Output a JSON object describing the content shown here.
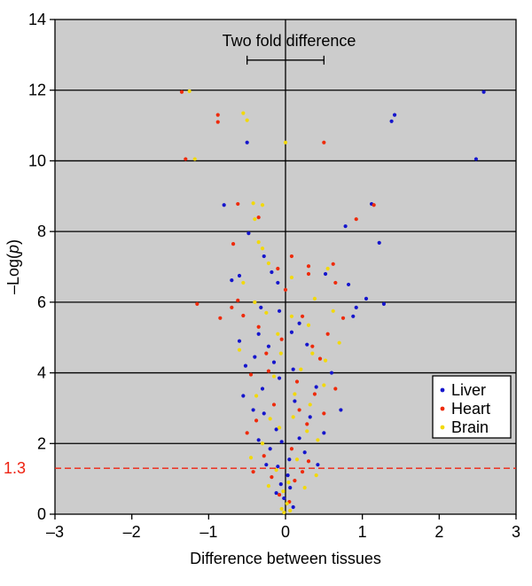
{
  "chart_data": {
    "type": "scatter",
    "title": "",
    "xlabel": "Difference between tissues",
    "ylabel_prefix": "–Log(",
    "ylabel_italic": "p",
    "ylabel_suffix": ")",
    "xlim": [
      -3,
      3
    ],
    "ylim": [
      0,
      14
    ],
    "x_ticks": [
      -3,
      -2,
      -1,
      0,
      1,
      2,
      3
    ],
    "x_tick_labels": [
      "–3",
      "–2",
      "–1",
      "0",
      "1",
      "2",
      "3"
    ],
    "y_ticks": [
      0,
      2,
      4,
      6,
      8,
      10,
      12,
      14
    ],
    "y_tick_labels": [
      "0",
      "2",
      "4",
      "6",
      "8",
      "10",
      "12",
      "14"
    ],
    "gridlines_y": [
      2,
      4,
      6,
      8,
      10,
      12
    ],
    "background_color": "#cccccc",
    "threshold": {
      "value": 1.3,
      "label": "1.3",
      "color": "#ee2211"
    },
    "annotation": {
      "text": "Two fold difference",
      "x_from": -0.5,
      "x_to": 0.5,
      "y": 12.85
    },
    "legend_position": "bottom-right",
    "legend": [
      {
        "label": "Liver",
        "color": "#1515cc"
      },
      {
        "label": "Heart",
        "color": "#ee2a0a"
      },
      {
        "label": "Brain",
        "color": "#f2d90a"
      }
    ],
    "series": [
      {
        "name": "Liver",
        "color": "#1515cc",
        "points": [
          [
            2.58,
            11.95
          ],
          [
            1.42,
            11.3
          ],
          [
            1.38,
            11.12
          ],
          [
            2.48,
            10.05
          ],
          [
            -0.5,
            10.52
          ],
          [
            -0.8,
            8.75
          ],
          [
            1.12,
            8.78
          ],
          [
            0.78,
            8.15
          ],
          [
            1.22,
            7.68
          ],
          [
            -0.48,
            7.95
          ],
          [
            -0.6,
            6.75
          ],
          [
            -0.7,
            6.62
          ],
          [
            -0.28,
            7.3
          ],
          [
            -0.18,
            6.85
          ],
          [
            -0.1,
            6.55
          ],
          [
            0.52,
            6.8
          ],
          [
            0.82,
            6.5
          ],
          [
            1.28,
            5.95
          ],
          [
            1.05,
            6.1
          ],
          [
            0.92,
            5.85
          ],
          [
            0.88,
            5.6
          ],
          [
            -0.32,
            5.85
          ],
          [
            -0.08,
            5.75
          ],
          [
            0.18,
            5.4
          ],
          [
            -0.35,
            5.1
          ],
          [
            -0.22,
            4.75
          ],
          [
            -0.15,
            4.3
          ],
          [
            -0.3,
            3.55
          ],
          [
            -0.08,
            3.85
          ],
          [
            0.1,
            4.1
          ],
          [
            -0.4,
            4.45
          ],
          [
            -0.52,
            4.2
          ],
          [
            -0.55,
            3.35
          ],
          [
            -0.28,
            2.85
          ],
          [
            -0.12,
            2.4
          ],
          [
            -0.35,
            2.1
          ],
          [
            -0.2,
            1.85
          ],
          [
            -0.25,
            1.4
          ],
          [
            -0.1,
            1.35
          ],
          [
            0.05,
            1.55
          ],
          [
            0.25,
            1.75
          ],
          [
            0.42,
            1.4
          ],
          [
            0.18,
            2.15
          ],
          [
            0.32,
            2.75
          ],
          [
            0.12,
            3.2
          ],
          [
            0.6,
            4.0
          ],
          [
            0.72,
            2.95
          ],
          [
            0.4,
            3.6
          ],
          [
            0.5,
            2.3
          ],
          [
            -0.06,
            0.85
          ],
          [
            0.06,
            0.75
          ],
          [
            -0.02,
            0.45
          ],
          [
            0.1,
            0.2
          ],
          [
            -0.12,
            0.6
          ],
          [
            0.03,
            1.1
          ],
          [
            -0.42,
            2.95
          ],
          [
            -0.05,
            2.05
          ],
          [
            0.28,
            4.8
          ],
          [
            -0.6,
            4.9
          ],
          [
            0.08,
            5.15
          ]
        ]
      },
      {
        "name": "Heart",
        "color": "#ee2a0a",
        "points": [
          [
            -1.35,
            11.95
          ],
          [
            -0.88,
            11.3
          ],
          [
            -0.88,
            11.1
          ],
          [
            -1.3,
            10.05
          ],
          [
            0.5,
            10.52
          ],
          [
            -0.62,
            8.78
          ],
          [
            0.92,
            8.35
          ],
          [
            1.15,
            8.75
          ],
          [
            -0.68,
            7.65
          ],
          [
            -0.35,
            8.4
          ],
          [
            0.08,
            7.3
          ],
          [
            0.3,
            7.02
          ],
          [
            0.62,
            7.08
          ],
          [
            0.3,
            6.8
          ],
          [
            -0.62,
            6.05
          ],
          [
            -0.7,
            5.85
          ],
          [
            -1.15,
            5.95
          ],
          [
            -0.85,
            5.55
          ],
          [
            -0.55,
            5.62
          ],
          [
            -0.1,
            6.95
          ],
          [
            0.0,
            6.35
          ],
          [
            0.65,
            6.55
          ],
          [
            0.75,
            5.55
          ],
          [
            0.55,
            5.1
          ],
          [
            0.35,
            4.75
          ],
          [
            0.22,
            5.6
          ],
          [
            -0.05,
            4.95
          ],
          [
            -0.35,
            5.3
          ],
          [
            -0.45,
            3.95
          ],
          [
            -0.22,
            4.05
          ],
          [
            0.15,
            3.75
          ],
          [
            0.38,
            3.4
          ],
          [
            0.65,
            3.55
          ],
          [
            0.5,
            2.85
          ],
          [
            0.28,
            2.55
          ],
          [
            -0.15,
            3.1
          ],
          [
            -0.38,
            2.65
          ],
          [
            -0.5,
            2.3
          ],
          [
            -0.28,
            1.65
          ],
          [
            0.08,
            1.85
          ],
          [
            0.22,
            1.2
          ],
          [
            -0.18,
            1.05
          ],
          [
            -0.08,
            0.55
          ],
          [
            0.05,
            0.35
          ],
          [
            0.12,
            0.95
          ],
          [
            0.3,
            1.5
          ],
          [
            -0.42,
            1.2
          ],
          [
            0.45,
            4.4
          ],
          [
            -0.25,
            4.55
          ],
          [
            0.18,
            2.95
          ]
        ]
      },
      {
        "name": "Brain",
        "color": "#f2d90a",
        "points": [
          [
            -1.25,
            11.97
          ],
          [
            -0.55,
            11.35
          ],
          [
            -0.5,
            11.15
          ],
          [
            -1.18,
            10.05
          ],
          [
            0.0,
            10.52
          ],
          [
            -0.42,
            8.8
          ],
          [
            -0.3,
            8.75
          ],
          [
            -0.4,
            8.35
          ],
          [
            -0.35,
            7.7
          ],
          [
            -0.3,
            7.52
          ],
          [
            -0.22,
            7.1
          ],
          [
            0.55,
            6.95
          ],
          [
            0.08,
            6.7
          ],
          [
            -0.55,
            6.55
          ],
          [
            -0.4,
            6.0
          ],
          [
            0.38,
            6.1
          ],
          [
            -0.25,
            5.7
          ],
          [
            0.08,
            5.6
          ],
          [
            0.3,
            5.35
          ],
          [
            0.62,
            5.75
          ],
          [
            0.7,
            4.85
          ],
          [
            0.52,
            4.35
          ],
          [
            0.2,
            4.1
          ],
          [
            -0.06,
            4.55
          ],
          [
            -0.15,
            3.9
          ],
          [
            -0.38,
            3.35
          ],
          [
            0.32,
            3.1
          ],
          [
            0.1,
            2.75
          ],
          [
            -0.08,
            2.45
          ],
          [
            0.42,
            2.1
          ],
          [
            -0.3,
            2.0
          ],
          [
            0.15,
            1.55
          ],
          [
            -0.12,
            1.25
          ],
          [
            0.04,
            0.9
          ],
          [
            -0.03,
            0.65
          ],
          [
            0.02,
            0.3
          ],
          [
            -0.05,
            0.15
          ],
          [
            0.06,
            0.1
          ],
          [
            -0.02,
            0.05
          ],
          [
            0.25,
            0.75
          ],
          [
            -0.22,
            0.8
          ],
          [
            0.4,
            1.1
          ],
          [
            -0.45,
            1.6
          ],
          [
            0.5,
            3.65
          ],
          [
            -0.6,
            4.65
          ],
          [
            0.35,
            4.55
          ],
          [
            -0.1,
            5.1
          ],
          [
            0.12,
            3.4
          ],
          [
            -0.2,
            2.7
          ],
          [
            0.28,
            2.35
          ]
        ]
      }
    ]
  }
}
